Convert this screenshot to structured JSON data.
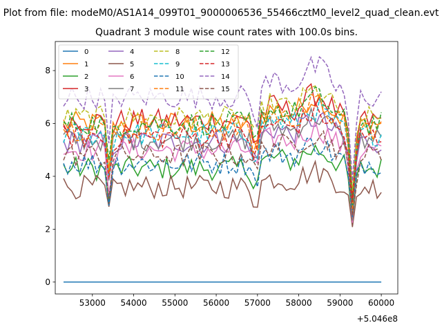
{
  "figure": {
    "suptitle": "Plot from file: modeM0/AS1A14_099T01_9000006536_55466cztM0_level2_quad_clean.evt",
    "title": "Quadrant 3 module wise count rates with 100.0s bins.",
    "x_offset_label": "+5.046e8"
  },
  "chart_data": {
    "type": "line",
    "title": "Quadrant 3 module wise count rates with 100.0s bins.",
    "xlabel": "",
    "ylabel": "",
    "x_offset": 504600000,
    "xlim": [
      52100,
      60400
    ],
    "ylim": [
      -0.45,
      9.1
    ],
    "x_ticks": [
      52000,
      53000,
      54000,
      55000,
      56000,
      57000,
      58000,
      59000,
      60000
    ],
    "x_tick_labels": [
      "52000",
      "53000",
      "54000",
      "55000",
      "56000",
      "57000",
      "58000",
      "59000",
      "60000"
    ],
    "y_ticks": [
      0,
      2,
      4,
      6,
      8
    ],
    "y_tick_labels": [
      "0",
      "2",
      "4",
      "6",
      "8"
    ],
    "x": [
      52300,
      52400,
      52500,
      52600,
      52700,
      52800,
      52900,
      53000,
      53100,
      53200,
      53300,
      53400,
      53500,
      53600,
      53700,
      53800,
      53900,
      54000,
      54100,
      54200,
      54300,
      54400,
      54500,
      54600,
      54700,
      54800,
      54900,
      55000,
      55100,
      55200,
      55300,
      55400,
      55500,
      55600,
      55700,
      55800,
      55900,
      56000,
      56100,
      56200,
      56300,
      56400,
      56500,
      56600,
      56700,
      56800,
      56900,
      57000,
      57100,
      57200,
      57300,
      57400,
      57500,
      57600,
      57700,
      57800,
      57900,
      58000,
      58100,
      58200,
      58300,
      58400,
      58500,
      58600,
      58700,
      58800,
      58900,
      59000,
      59100,
      59200,
      59300,
      59400,
      59500,
      59600,
      59700,
      59800,
      59900,
      60000
    ],
    "legend_position": "top-left",
    "legend_columns": 4,
    "grid": false,
    "series": [
      {
        "name": "0",
        "color": "#1f77b4",
        "dash": "solid",
        "base": 0,
        "values": [
          0,
          0,
          0,
          0,
          0,
          0,
          0,
          0,
          0,
          0,
          0,
          0,
          0,
          0,
          0,
          0,
          0,
          0,
          0,
          0,
          0,
          0,
          0,
          0,
          0,
          0,
          0,
          0,
          0,
          0,
          0,
          0,
          0,
          0,
          0,
          0,
          0,
          0,
          0,
          0,
          0,
          0,
          0,
          0,
          0,
          0,
          0,
          0,
          0,
          0,
          0,
          0,
          0,
          0,
          0,
          0,
          0,
          0,
          0,
          0,
          0,
          0,
          0,
          0,
          0,
          0,
          0,
          0,
          0,
          0,
          0,
          0,
          0,
          0,
          0,
          0,
          0,
          0
        ]
      },
      {
        "name": "1",
        "color": "#ff7f0e",
        "dash": "solid",
        "base": 6.0
      },
      {
        "name": "2",
        "color": "#2ca02c",
        "dash": "solid",
        "base": 4.3
      },
      {
        "name": "3",
        "color": "#d62728",
        "dash": "solid",
        "base": 6.1
      },
      {
        "name": "4",
        "color": "#9467bd",
        "dash": "solid",
        "base": 5.3
      },
      {
        "name": "5",
        "color": "#8c564b",
        "dash": "solid",
        "base": 3.6
      },
      {
        "name": "6",
        "color": "#e377c2",
        "dash": "solid",
        "base": 5.0
      },
      {
        "name": "7",
        "color": "#7f7f7f",
        "dash": "solid",
        "base": 5.4
      },
      {
        "name": "8",
        "color": "#bcbd22",
        "dash": "dashed",
        "base": 6.2
      },
      {
        "name": "9",
        "color": "#17becf",
        "dash": "dashed",
        "base": 5.6
      },
      {
        "name": "10",
        "color": "#1f77b4",
        "dash": "dashed",
        "base": 4.5
      },
      {
        "name": "11",
        "color": "#ff7f0e",
        "dash": "dashed",
        "base": 5.8
      },
      {
        "name": "12",
        "color": "#2ca02c",
        "dash": "dashed",
        "base": 6.0
      },
      {
        "name": "13",
        "color": "#d62728",
        "dash": "dashed",
        "base": 5.5
      },
      {
        "name": "14",
        "color": "#9467bd",
        "dash": "dashed",
        "base": 7.0
      },
      {
        "name": "15",
        "color": "#8c564b",
        "dash": "dashed",
        "base": 4.8
      }
    ]
  }
}
